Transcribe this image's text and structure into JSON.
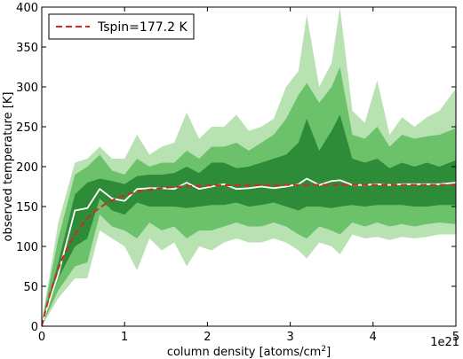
{
  "chart_data": {
    "type": "area",
    "xlabel": "column density [atoms/cm",
    "xlabel_sup": "2",
    "xlabel_end": "]",
    "ylabel": "observed temperature [K]",
    "x_multiplier": "1e21",
    "xlim": [
      0,
      5
    ],
    "ylim": [
      0,
      400
    ],
    "x_ticks": [
      0,
      1,
      2,
      3,
      4,
      5
    ],
    "y_ticks": [
      0,
      50,
      100,
      150,
      200,
      250,
      300,
      350,
      400
    ],
    "legend": {
      "position": "top-left",
      "entry": "Tspin=177.2 K",
      "color": "#d62728",
      "style": "dashed"
    },
    "colors": {
      "outer_band": "#b9e2b2",
      "middle_band": "#6cc16b",
      "inner_band": "#2e8b38",
      "median": "#ffffff"
    },
    "x": [
      0,
      0.2,
      0.4,
      0.55,
      0.7,
      0.85,
      1.0,
      1.15,
      1.3,
      1.45,
      1.6,
      1.75,
      1.9,
      2.05,
      2.2,
      2.35,
      2.5,
      2.65,
      2.8,
      2.95,
      3.1,
      3.2,
      3.35,
      3.5,
      3.6,
      3.75,
      3.9,
      4.05,
      4.2,
      4.35,
      4.5,
      4.65,
      4.8,
      5.0
    ],
    "series": [
      {
        "band": "outer",
        "upper": [
          5,
          130,
          205,
          210,
          225,
          210,
          210,
          240,
          215,
          225,
          230,
          268,
          235,
          250,
          250,
          265,
          245,
          250,
          260,
          300,
          320,
          390,
          300,
          330,
          400,
          270,
          255,
          308,
          240,
          262,
          250,
          262,
          270,
          298
        ],
        "lower": [
          0,
          35,
          60,
          60,
          120,
          110,
          100,
          70,
          110,
          95,
          105,
          75,
          100,
          95,
          105,
          110,
          105,
          105,
          110,
          105,
          95,
          85,
          105,
          100,
          90,
          115,
          110,
          112,
          108,
          112,
          110,
          112,
          115,
          115
        ]
      },
      {
        "band": "middle",
        "upper": [
          5,
          110,
          190,
          200,
          215,
          195,
          190,
          210,
          200,
          205,
          205,
          220,
          210,
          225,
          225,
          230,
          220,
          230,
          240,
          260,
          290,
          305,
          280,
          300,
          325,
          240,
          235,
          250,
          225,
          240,
          235,
          238,
          240,
          248
        ],
        "lower": [
          0,
          45,
          75,
          80,
          140,
          125,
          120,
          110,
          130,
          120,
          125,
          110,
          120,
          120,
          125,
          130,
          125,
          125,
          130,
          125,
          115,
          110,
          125,
          120,
          115,
          130,
          125,
          130,
          125,
          128,
          125,
          128,
          130,
          128
        ]
      },
      {
        "band": "inner",
        "upper": [
          5,
          80,
          165,
          180,
          185,
          182,
          178,
          188,
          190,
          190,
          192,
          200,
          192,
          205,
          205,
          198,
          200,
          205,
          210,
          215,
          230,
          260,
          220,
          245,
          265,
          210,
          205,
          210,
          198,
          205,
          200,
          205,
          200,
          208
        ],
        "lower": [
          0,
          60,
          100,
          110,
          160,
          145,
          140,
          155,
          150,
          150,
          150,
          148,
          150,
          152,
          152,
          155,
          150,
          152,
          155,
          150,
          145,
          150,
          150,
          148,
          150,
          152,
          150,
          152,
          152,
          152,
          150,
          150,
          152,
          152
        ]
      },
      {
        "name": "median",
        "values": [
          2,
          65,
          145,
          148,
          172,
          160,
          157,
          172,
          173,
          173,
          172,
          180,
          172,
          175,
          178,
          172,
          173,
          175,
          173,
          175,
          178,
          185,
          177,
          182,
          183,
          177,
          177,
          178,
          177,
          178,
          178,
          178,
          178,
          180
        ]
      },
      {
        "name": "Tspin=177.2 K",
        "tspin": 177.2
      }
    ]
  }
}
